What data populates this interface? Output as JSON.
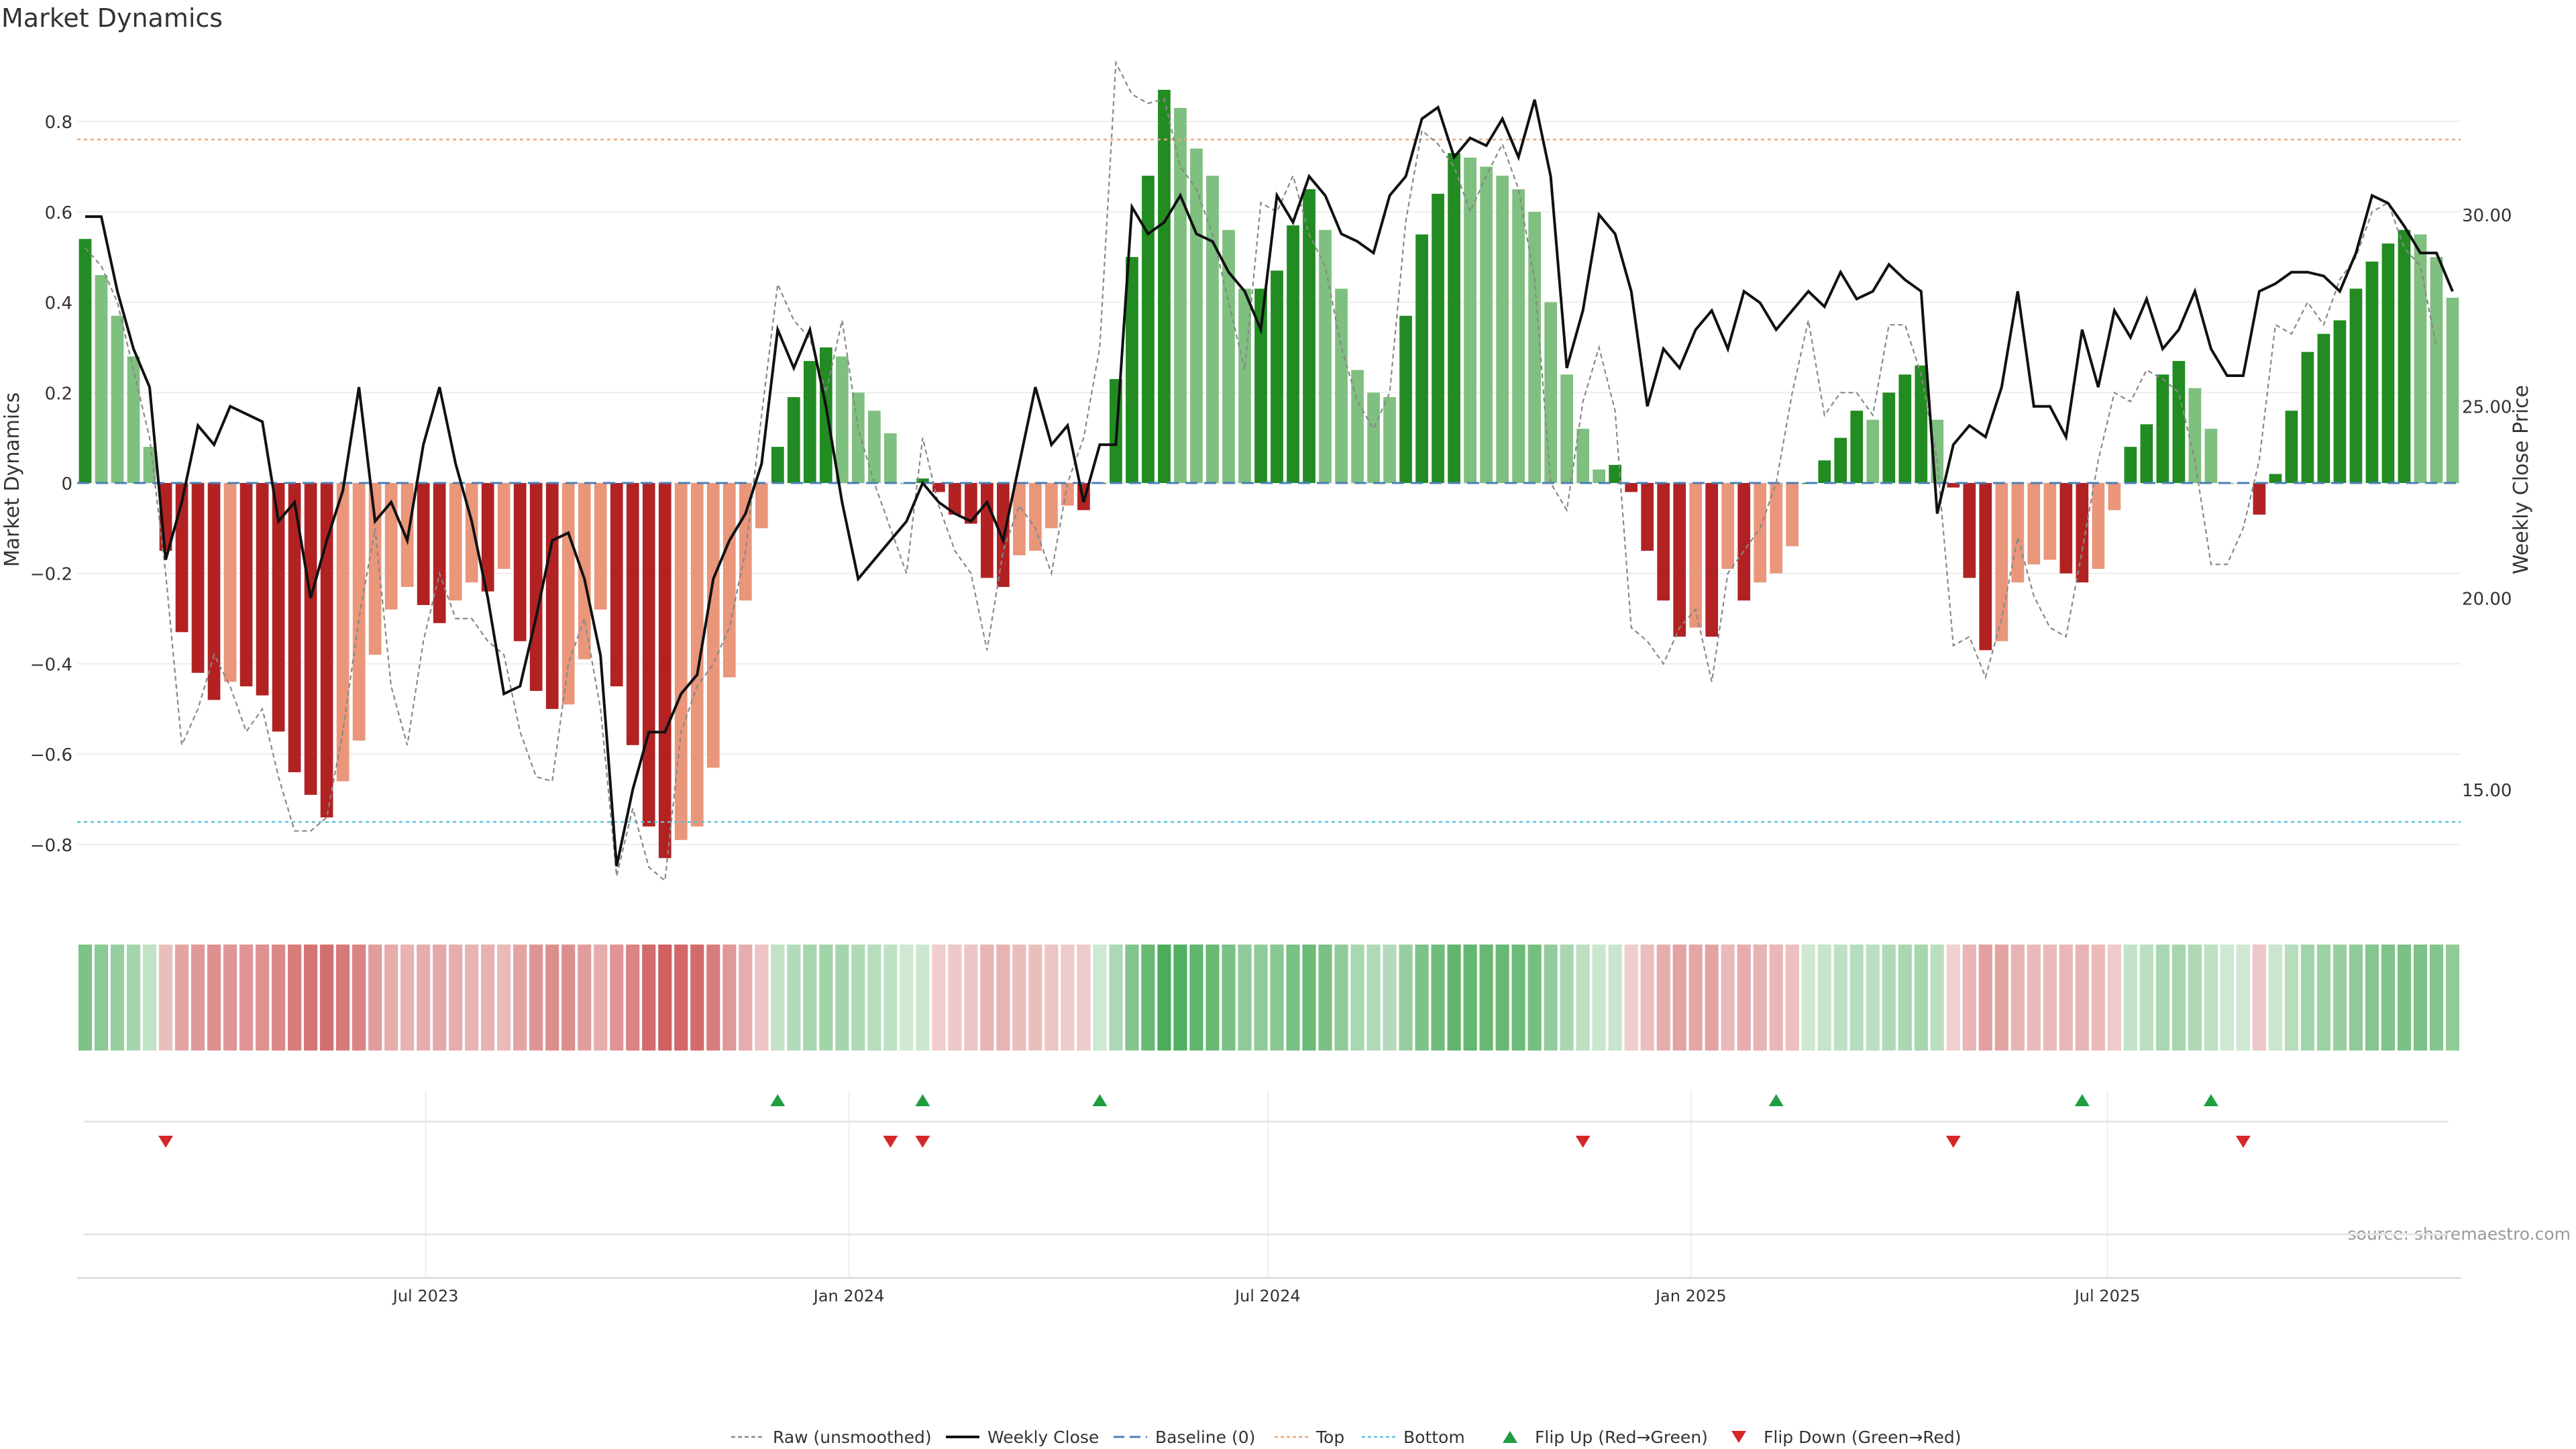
{
  "chart_data": {
    "type": "bar",
    "title": "Market Dynamics",
    "ylabel": "Market Dynamics",
    "y2label": "Weekly Close Price",
    "source": "source: sharemaestro.com",
    "ylim": [
      -0.95,
      0.95
    ],
    "y2lim": [
      11.8,
      34.2
    ],
    "yticks": [
      "0.8",
      "0.6",
      "0.4",
      "0.2",
      "0",
      "−0.2",
      "−0.4",
      "−0.6",
      "−0.8"
    ],
    "ytick_values": [
      0.8,
      0.6,
      0.4,
      0.2,
      0,
      -0.2,
      -0.4,
      -0.6,
      -0.8
    ],
    "y2ticks": [
      "30.00",
      "25.00",
      "20.00",
      "15.00"
    ],
    "y2tick_values": [
      30,
      25,
      20,
      15
    ],
    "xlabels": [
      "Jul 2023",
      "Jan 2024",
      "Jul 2024",
      "Jan 2025",
      "Jul 2025"
    ],
    "xlabel_dates": [
      "2023-07-01",
      "2024-01-01",
      "2024-07-01",
      "2025-01-01",
      "2025-07-01"
    ],
    "first_week": "2023-02-03",
    "top_level": 0.76,
    "bottom_level": -0.75,
    "grid": true,
    "legend_position": "bottom",
    "legend": [
      "Raw (unsmoothed)",
      "Weekly Close",
      "Baseline (0)",
      "Top",
      "Bottom",
      "Flip Up (Red→Green)",
      "Flip Down (Green→Red)"
    ],
    "colors": {
      "strong_up": "#228b22",
      "weak_up": "#7fbf7f",
      "strong_down": "#b22222",
      "weak_down": "#e9967a",
      "close": "#111111",
      "raw": "#888888",
      "baseline": "#4a7fb5",
      "top": "#e8a87c",
      "bottom": "#5bc0de",
      "flip_up": "#1e9e3e",
      "flip_down": "#d62728"
    },
    "series": [
      {
        "name": "Market Dynamics",
        "values": [
          0.54,
          0.46,
          0.37,
          0.28,
          0.08,
          -0.15,
          -0.33,
          -0.42,
          -0.48,
          -0.44,
          -0.45,
          -0.47,
          -0.55,
          -0.64,
          -0.69,
          -0.74,
          -0.66,
          -0.57,
          -0.38,
          -0.28,
          -0.23,
          -0.27,
          -0.31,
          -0.26,
          -0.22,
          -0.24,
          -0.19,
          -0.35,
          -0.46,
          -0.5,
          -0.49,
          -0.39,
          -0.28,
          -0.45,
          -0.58,
          -0.76,
          -0.83,
          -0.79,
          -0.76,
          -0.63,
          -0.43,
          -0.26,
          -0.1,
          0.08,
          0.19,
          0.27,
          0.3,
          0.28,
          0.2,
          0.16,
          0.11,
          0.0,
          0.01,
          -0.02,
          -0.07,
          -0.09,
          -0.21,
          -0.23,
          -0.16,
          -0.15,
          -0.1,
          -0.05,
          -0.06,
          0.0,
          0.23,
          0.5,
          0.68,
          0.87,
          0.83,
          0.74,
          0.68,
          0.56,
          0.43,
          0.43,
          0.47,
          0.57,
          0.65,
          0.56,
          0.43,
          0.25,
          0.2,
          0.19,
          0.37,
          0.55,
          0.64,
          0.73,
          0.72,
          0.7,
          0.68,
          0.65,
          0.6,
          0.4,
          0.24,
          0.12,
          0.03,
          0.04,
          -0.02,
          -0.15,
          -0.26,
          -0.34,
          -0.32,
          -0.34,
          -0.19,
          -0.26,
          -0.22,
          -0.2,
          -0.14,
          0.0,
          0.05,
          0.1,
          0.16,
          0.14,
          0.2,
          0.24,
          0.26,
          0.14,
          -0.01,
          -0.21,
          -0.37,
          -0.35,
          -0.22,
          -0.18,
          -0.17,
          -0.2,
          -0.22,
          -0.19,
          -0.06,
          0.08,
          0.13,
          0.24,
          0.27,
          0.21,
          0.12,
          0.0,
          0.0,
          -0.07,
          0.02,
          0.16,
          0.29,
          0.33,
          0.36,
          0.43,
          0.49,
          0.53,
          0.56,
          0.55,
          0.5,
          0.41
        ]
      },
      {
        "name": "Weekly Close",
        "values": [
          29.95,
          29.95,
          28.0,
          26.5,
          25.5,
          21.0,
          22.5,
          24.5,
          24.0,
          25.0,
          24.8,
          24.6,
          22.0,
          22.5,
          20.0,
          21.5,
          22.8,
          25.5,
          22.0,
          22.5,
          21.5,
          24.0,
          25.5,
          23.5,
          22.0,
          20.0,
          17.5,
          17.7,
          19.5,
          21.5,
          21.7,
          20.5,
          18.5,
          13.0,
          15.0,
          16.5,
          16.5,
          17.5,
          18.0,
          20.5,
          21.5,
          22.2,
          23.5,
          27.0,
          26.0,
          27.0,
          25.0,
          22.5,
          20.5,
          21.0,
          21.5,
          22.0,
          23.0,
          22.5,
          22.2,
          22.0,
          22.5,
          21.5,
          23.5,
          25.5,
          24.0,
          24.5,
          22.5,
          24.0,
          24.0,
          30.2,
          29.5,
          29.8,
          30.5,
          29.5,
          29.3,
          28.5,
          28.0,
          27.0,
          30.5,
          29.8,
          31.0,
          30.5,
          29.5,
          29.3,
          29.0,
          30.5,
          31.0,
          32.5,
          32.8,
          31.5,
          32.0,
          31.8,
          32.5,
          31.5,
          33.0,
          31.0,
          26.0,
          27.5,
          30.0,
          29.5,
          28.0,
          25.0,
          26.5,
          26.0,
          27.0,
          27.5,
          26.5,
          28.0,
          27.7,
          27.0,
          27.5,
          28.0,
          27.6,
          28.5,
          27.8,
          28.0,
          28.7,
          28.3,
          28.0,
          22.2,
          24.0,
          24.5,
          24.2,
          25.5,
          28.0,
          25.0,
          25.0,
          24.2,
          27.0,
          25.5,
          27.5,
          26.8,
          27.8,
          26.5,
          27.0,
          28.0,
          26.5,
          25.8,
          25.8,
          28.0,
          28.2,
          28.5,
          28.5,
          28.4,
          28.0,
          29.0,
          30.5,
          30.3,
          29.7,
          29.0,
          29.0,
          28.0
        ]
      },
      {
        "name": "Raw (unsmoothed)",
        "values": [
          0.52,
          0.48,
          0.4,
          0.25,
          0.1,
          -0.2,
          -0.58,
          -0.5,
          -0.38,
          -0.45,
          -0.55,
          -0.5,
          -0.65,
          -0.77,
          -0.77,
          -0.74,
          -0.55,
          -0.3,
          -0.1,
          -0.45,
          -0.58,
          -0.35,
          -0.2,
          -0.3,
          -0.3,
          -0.35,
          -0.38,
          -0.55,
          -0.65,
          -0.66,
          -0.4,
          -0.3,
          -0.5,
          -0.87,
          -0.72,
          -0.85,
          -0.88,
          -0.55,
          -0.45,
          -0.4,
          -0.32,
          -0.15,
          0.15,
          0.44,
          0.36,
          0.32,
          0.2,
          0.36,
          0.12,
          0.0,
          -0.1,
          -0.2,
          0.1,
          -0.05,
          -0.15,
          -0.2,
          -0.37,
          -0.15,
          -0.05,
          -0.1,
          -0.2,
          0.0,
          0.1,
          0.3,
          0.93,
          0.86,
          0.84,
          0.85,
          0.7,
          0.65,
          0.55,
          0.4,
          0.25,
          0.62,
          0.6,
          0.68,
          0.55,
          0.48,
          0.3,
          0.18,
          0.12,
          0.2,
          0.58,
          0.78,
          0.75,
          0.7,
          0.6,
          0.68,
          0.75,
          0.65,
          0.45,
          0.0,
          -0.06,
          0.18,
          0.3,
          0.16,
          -0.32,
          -0.35,
          -0.4,
          -0.32,
          -0.28,
          -0.44,
          -0.2,
          -0.15,
          -0.1,
          0.0,
          0.2,
          0.36,
          0.15,
          0.2,
          0.2,
          0.15,
          0.35,
          0.35,
          0.24,
          0.05,
          -0.36,
          -0.34,
          -0.43,
          -0.3,
          -0.12,
          -0.25,
          -0.32,
          -0.34,
          -0.15,
          0.05,
          0.2,
          0.18,
          0.25,
          0.23,
          0.2,
          0.05,
          -0.18,
          -0.18,
          -0.1,
          0.05,
          0.35,
          0.33,
          0.4,
          0.35,
          0.45,
          0.5,
          0.6,
          0.62,
          0.52,
          0.48,
          0.3
        ]
      },
      {
        "name": "Flip Up (Red→Green)",
        "weeks": [
          43,
          52,
          63,
          105,
          124,
          132
        ]
      },
      {
        "name": "Flip Down (Green→Red)",
        "weeks": [
          5,
          50,
          52,
          93,
          116,
          134
        ]
      }
    ]
  }
}
